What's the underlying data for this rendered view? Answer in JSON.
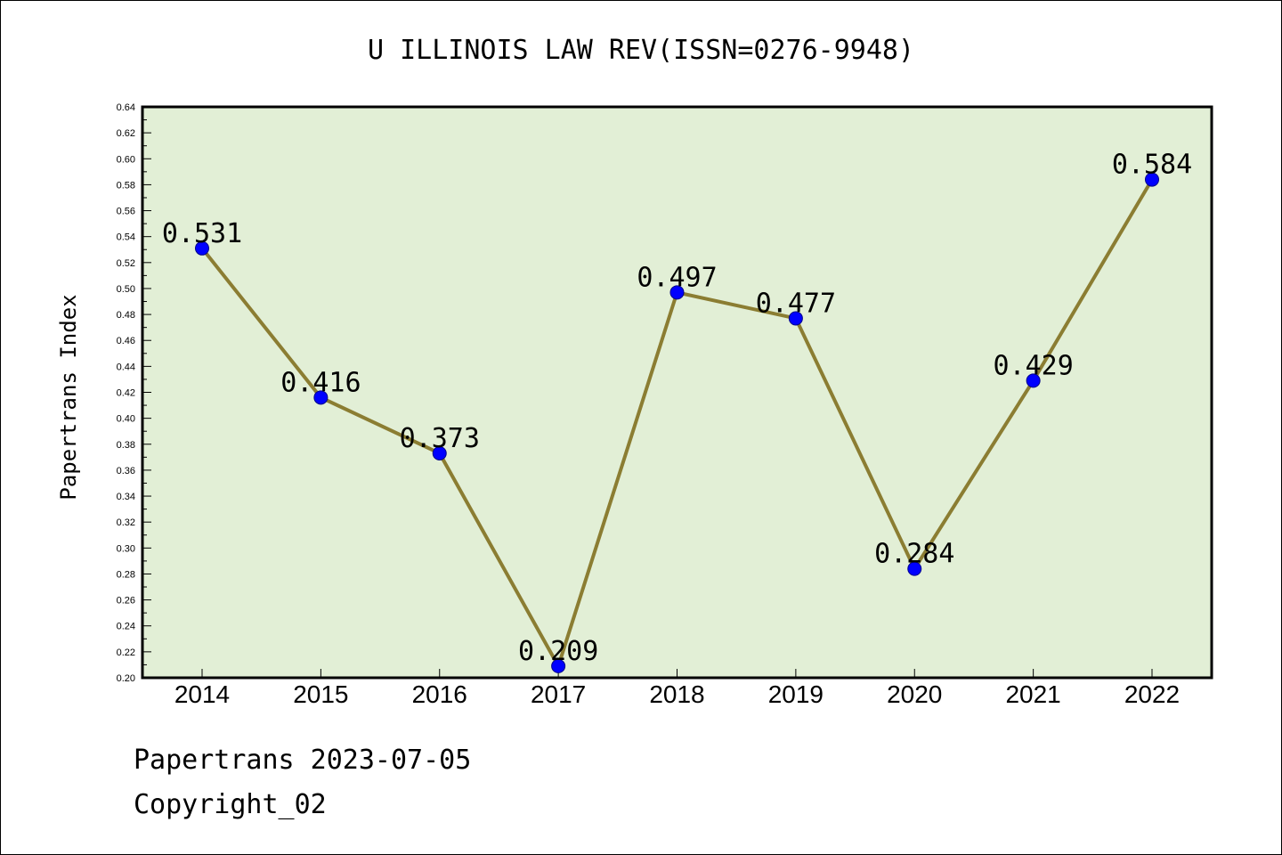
{
  "chart_data": {
    "type": "line",
    "title": "U ILLINOIS LAW REV(ISSN=0276-9948)",
    "ylabel": "Papertrans Index",
    "xlabel": "",
    "categories": [
      "2014",
      "2015",
      "2016",
      "2017",
      "2018",
      "2019",
      "2020",
      "2021",
      "2022"
    ],
    "series": [
      {
        "values": [
          0.531,
          0.416,
          0.373,
          0.209,
          0.497,
          0.477,
          0.284,
          0.429,
          0.584
        ]
      }
    ],
    "data_labels": [
      "0.531",
      "0.416",
      "0.373",
      "0.209",
      "0.497",
      "0.477",
      "0.284",
      "0.429",
      "0.584"
    ],
    "ylim": [
      0.2,
      0.64
    ],
    "yticks": [
      "0.20",
      "0.22",
      "0.24",
      "0.26",
      "0.28",
      "0.30",
      "0.32",
      "0.34",
      "0.36",
      "0.38",
      "0.40",
      "0.42",
      "0.44",
      "0.46",
      "0.48",
      "0.50",
      "0.52",
      "0.54",
      "0.56",
      "0.58",
      "0.60",
      "0.62",
      "0.64"
    ],
    "grid": false,
    "colors": {
      "plot_background": "#e2efd6",
      "line": "#8b7d32",
      "marker": "#0000ff"
    }
  },
  "footer": {
    "line1": "Papertrans 2023-07-05",
    "line2": "Copyright_02"
  }
}
